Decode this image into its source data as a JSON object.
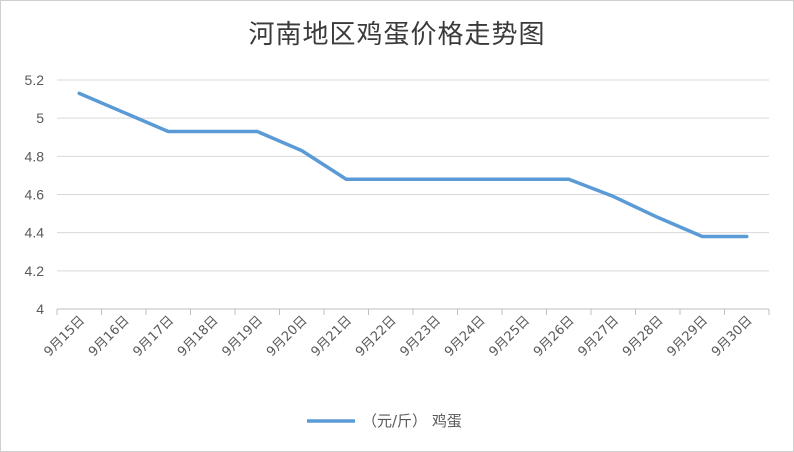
{
  "chart_data": {
    "type": "line",
    "title": "河南地区鸡蛋价格走势图",
    "xlabel": "",
    "ylabel": "",
    "categories": [
      "9月15日",
      "9月16日",
      "9月17日",
      "9月18日",
      "9月19日",
      "9月20日",
      "9月21日",
      "9月22日",
      "9月23日",
      "9月24日",
      "9月25日",
      "9月26日",
      "9月27日",
      "9月28日",
      "9月29日",
      "9月30日"
    ],
    "series": [
      {
        "name": "（元/斤） 鸡蛋",
        "color": "#5b9bd5",
        "values": [
          5.13,
          5.03,
          4.93,
          4.93,
          4.93,
          4.83,
          4.68,
          4.68,
          4.68,
          4.68,
          4.68,
          4.68,
          4.59,
          4.48,
          4.38,
          4.38
        ]
      }
    ],
    "ylim": [
      4,
      5.2
    ],
    "yticks": [
      "4",
      "4.2",
      "4.4",
      "4.6",
      "4.8",
      "5",
      "5.2"
    ],
    "grid": true,
    "legend": "bottom"
  }
}
